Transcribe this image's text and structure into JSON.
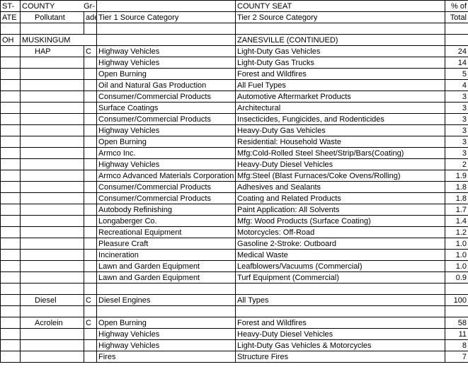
{
  "fontsize": 11,
  "colors": {
    "border": "#000000",
    "text": "#000000",
    "bg": "#ffffff"
  },
  "header": {
    "r1": {
      "state": "ST-",
      "county": "COUNTY",
      "grade": "Gr-",
      "seat": "COUNTY SEAT",
      "pct": "% of"
    },
    "r2": {
      "state": "ATE",
      "pollutant": "Pollutant",
      "grade": "ade",
      "tier1": "Tier 1 Source Category",
      "tier2": "Tier 2 Source Category",
      "pct": "Total"
    }
  },
  "section": {
    "state": "OH",
    "county": "MUSKINGUM",
    "seat": "ZANESVILLE (CONTINUED)"
  },
  "groups": [
    {
      "pollutant": "HAP",
      "grade": "C",
      "rows": [
        {
          "t1": "Highway Vehicles",
          "t2": "Light-Duty Gas Vehicles",
          "p": "24"
        },
        {
          "t1": "Highway Vehicles",
          "t2": "Light-Duty Gas Trucks",
          "p": "14"
        },
        {
          "t1": "Open Burning",
          "t2": "Forest and Wildfires",
          "p": "5"
        },
        {
          "t1": "Oil and Natural Gas Production",
          "t2": "All Fuel Types",
          "p": "4"
        },
        {
          "t1": "Consumer/Commercial Products",
          "t2": "Automotive Aftermarket Products",
          "p": "3"
        },
        {
          "t1": "Surface Coatings",
          "t2": "Architectural",
          "p": "3"
        },
        {
          "t1": "Consumer/Commercial Products",
          "t2": "Insecticides, Fungicides, and Rodenticides",
          "p": "3"
        },
        {
          "t1": "Highway Vehicles",
          "t2": "Heavy-Duty Gas Vehicles",
          "p": "3"
        },
        {
          "t1": "Open Burning",
          "t2": "Residential: Household Waste",
          "p": "3"
        },
        {
          "t1": "Armco Inc.",
          "t2": "Mfg:Cold-Rolled Steel Sheet/Strip/Bars(Coating)",
          "p": "3"
        },
        {
          "t1": "Highway Vehicles",
          "t2": "Heavy-Duty Diesel Vehicles",
          "p": "2"
        },
        {
          "t1": "Armco Advanced Materials Corporation",
          "t2": "Mfg:Steel (Blast Furnaces/Coke Ovens/Rolling)",
          "p": "1.9"
        },
        {
          "t1": "Consumer/Commercial Products",
          "t2": "Adhesives and Sealants",
          "p": "1.8"
        },
        {
          "t1": "Consumer/Commercial Products",
          "t2": "Coating and Related Products",
          "p": "1.8"
        },
        {
          "t1": "Autobody Refinishing",
          "t2": "Paint Application: All Solvents",
          "p": "1.7"
        },
        {
          "t1": "Longaberger Co.",
          "t2": "Mfg: Wood Products (Surface Coating)",
          "p": "1.4"
        },
        {
          "t1": "Recreational Equipment",
          "t2": "Motorcycles: Off-Road",
          "p": "1.2"
        },
        {
          "t1": "Pleasure Craft",
          "t2": "Gasoline 2-Stroke: Outboard",
          "p": "1.0"
        },
        {
          "t1": "Incineration",
          "t2": "Medical Waste",
          "p": "1.0"
        },
        {
          "t1": "Lawn and Garden Equipment",
          "t2": "Leafblowers/Vacuums (Commercial)",
          "p": "1.0"
        },
        {
          "t1": "Lawn and Garden Equipment",
          "t2": "Turf Equipment (Commercial)",
          "p": "0.9"
        }
      ]
    },
    {
      "pollutant": "Diesel",
      "grade": "C",
      "rows": [
        {
          "t1": "Diesel Engines",
          "t2": "All Types",
          "p": "100"
        }
      ]
    },
    {
      "pollutant": "Acrolein",
      "grade": "C",
      "rows": [
        {
          "t1": "Open Burning",
          "t2": "Forest and Wildfires",
          "p": "58"
        },
        {
          "t1": "Highway Vehicles",
          "t2": "Heavy-Duty Diesel Vehicles",
          "p": "11"
        },
        {
          "t1": "Highway Vehicles",
          "t2": "Light-Duty Gas Vehicles & Motorcycles",
          "p": "8"
        },
        {
          "t1": "Fires",
          "t2": "Structure Fires",
          "p": "7"
        }
      ]
    }
  ]
}
